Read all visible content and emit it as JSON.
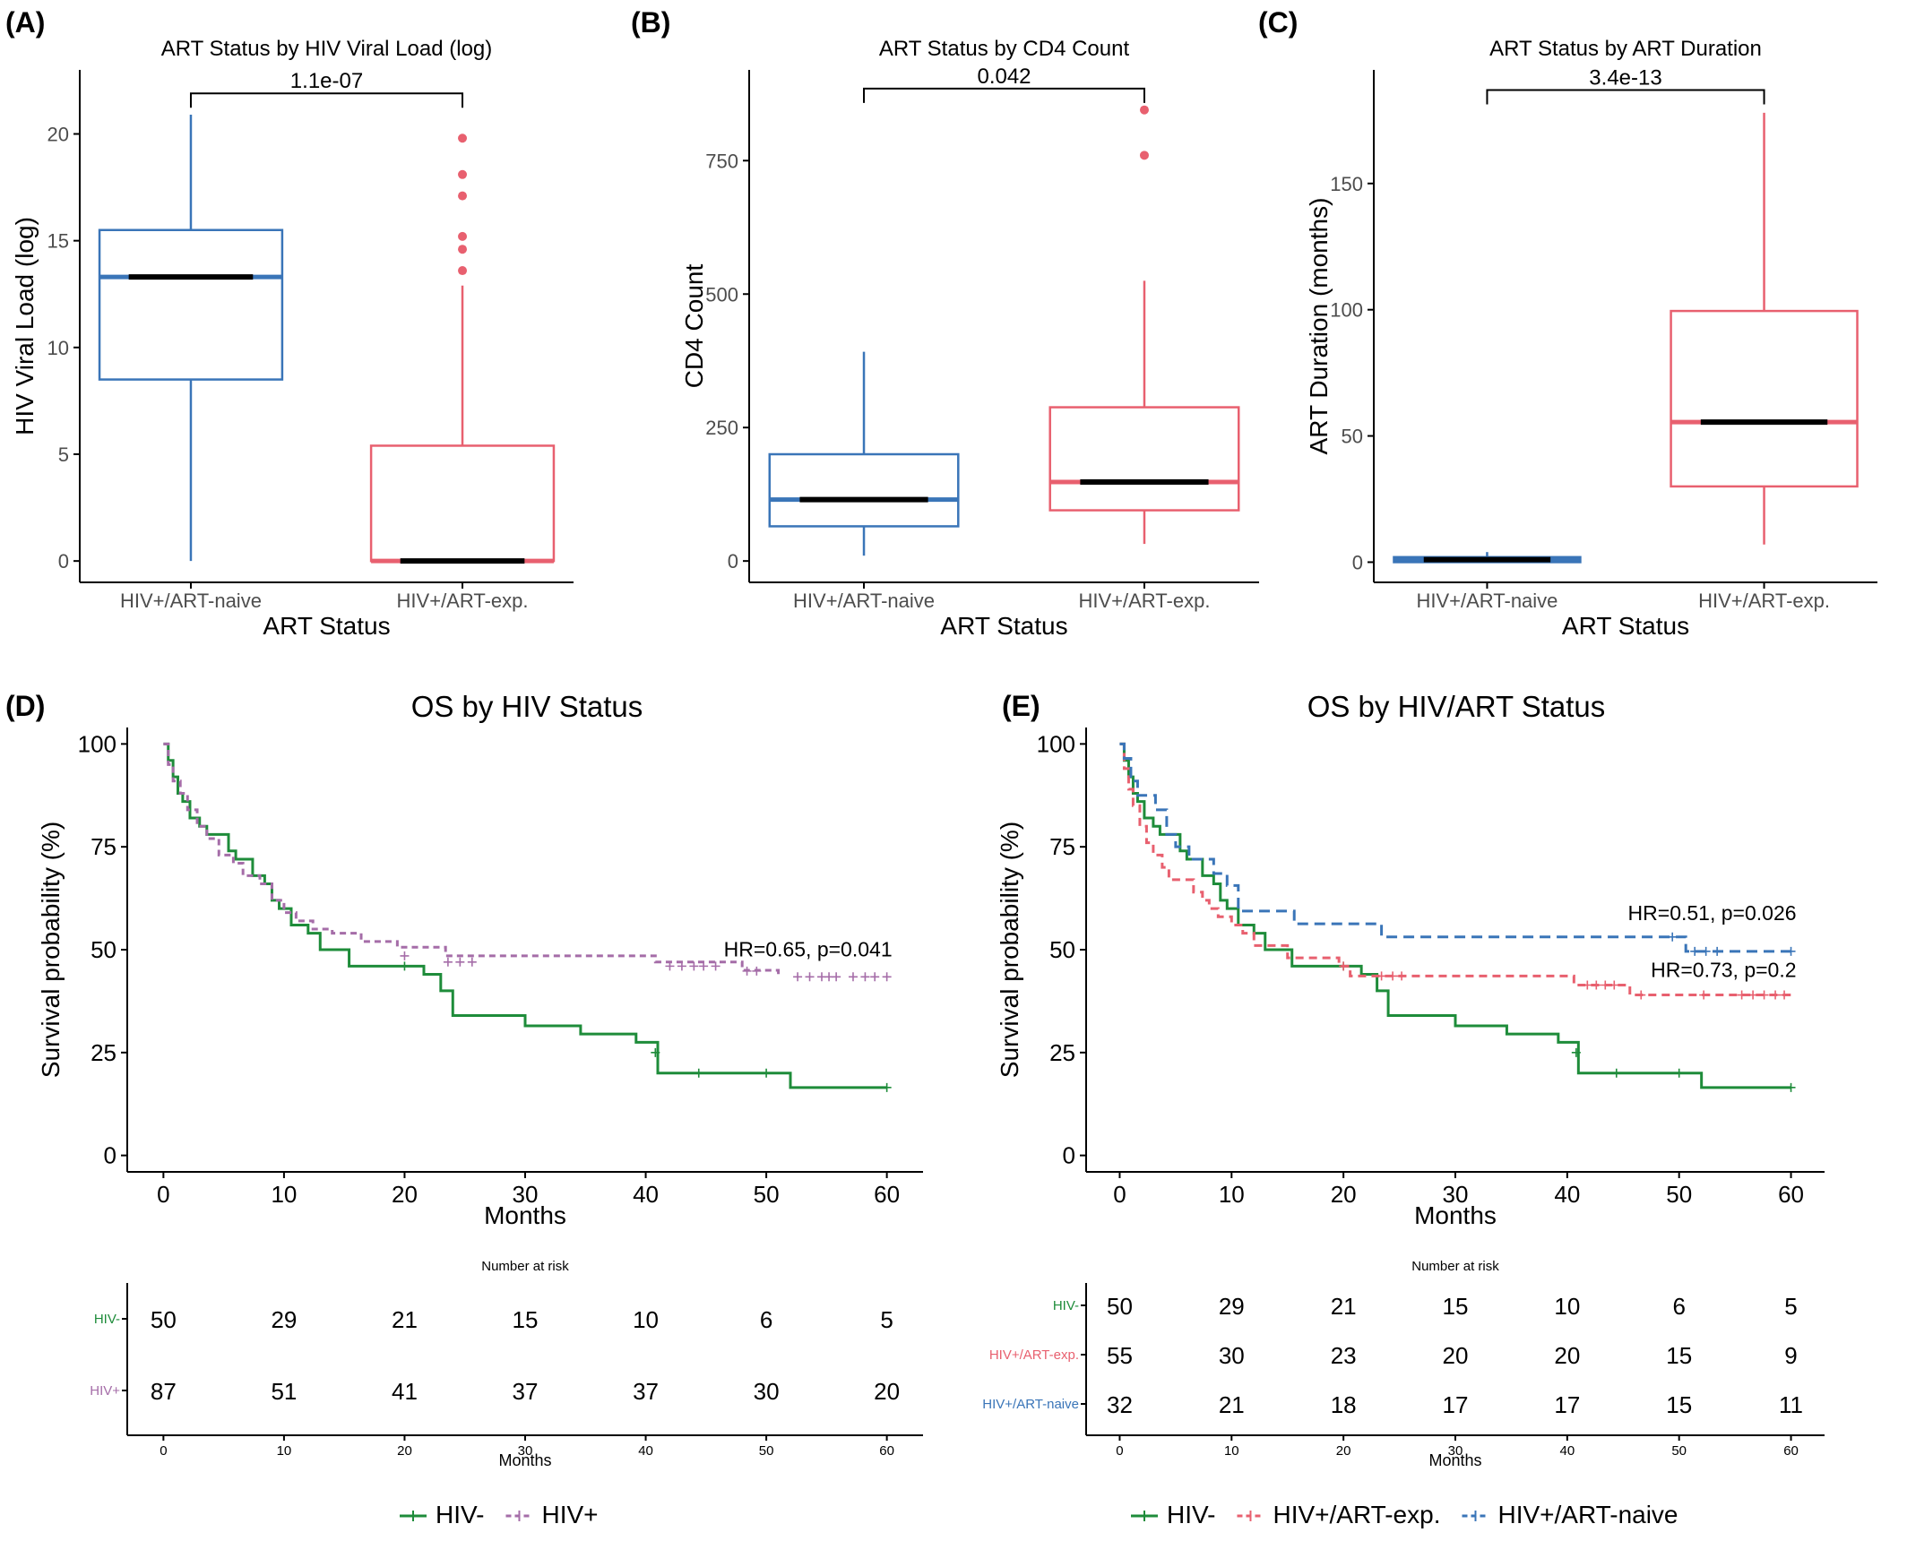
{
  "colors": {
    "naive": "#3A75B8",
    "exp": "#E8606F",
    "hivneg": "#1E8C3A",
    "hivpos": "#A56DA8",
    "axis": "#000000",
    "tick_text": "#4D4D4D"
  },
  "chart_data": [
    {
      "panel": "(A)",
      "type": "box",
      "title": "ART Status by HIV Viral Load (log)",
      "xlabel": "ART Status",
      "ylabel": "HIV Viral Load (log)",
      "categories": [
        "HIV+/ART-naive",
        "HIV+/ART-exp."
      ],
      "ylim": [
        -1,
        23
      ],
      "yticks": [
        0,
        5,
        10,
        15,
        20
      ],
      "ytick_labels": [
        "0",
        "5",
        "10",
        "15",
        "20"
      ],
      "boxes": [
        {
          "name": "HIV+/ART-naive",
          "color": "naive",
          "whisker_low": 0,
          "q1": 8.5,
          "median": 13.3,
          "q3": 15.5,
          "whisker_high": 20.9,
          "outliers": []
        },
        {
          "name": "HIV+/ART-exp.",
          "color": "exp",
          "whisker_low": 0,
          "q1": 0,
          "median": 0,
          "q3": 5.4,
          "whisker_high": 12.9,
          "outliers": [
            13.6,
            14.6,
            15.2,
            17.1,
            18.1,
            19.8
          ]
        }
      ],
      "comparison": {
        "label": "1.1e-07",
        "y": 21.9
      }
    },
    {
      "panel": "(B)",
      "type": "box",
      "title": "ART Status by CD4 Count",
      "xlabel": "ART Status",
      "ylabel": "CD4 Count",
      "categories": [
        "HIV+/ART-naive",
        "HIV+/ART-exp."
      ],
      "ylim": [
        -40,
        920
      ],
      "yticks": [
        0,
        250,
        500,
        750
      ],
      "ytick_labels": [
        "0",
        "250",
        "500",
        "750"
      ],
      "boxes": [
        {
          "name": "HIV+/ART-naive",
          "color": "naive",
          "whisker_low": 10,
          "q1": 65,
          "median": 115,
          "q3": 200,
          "whisker_high": 392,
          "outliers": []
        },
        {
          "name": "HIV+/ART-exp.",
          "color": "exp",
          "whisker_low": 32,
          "q1": 95,
          "median": 148,
          "q3": 288,
          "whisker_high": 525,
          "outliers": [
            760,
            845
          ]
        }
      ],
      "comparison": {
        "label": "0.042",
        "y": 885
      }
    },
    {
      "panel": "(C)",
      "type": "box",
      "title": "ART Status by ART Duration",
      "xlabel": "ART Status",
      "ylabel": "ART Duration (months)",
      "categories": [
        "HIV+/ART-naive",
        "HIV+/ART-exp."
      ],
      "ylim": [
        -8,
        195
      ],
      "yticks": [
        0,
        50,
        100,
        150
      ],
      "ytick_labels": [
        "0",
        "50",
        "100",
        "150"
      ],
      "boxes": [
        {
          "name": "HIV+/ART-naive",
          "color": "naive",
          "whisker_low": 0,
          "q1": 0,
          "median": 1,
          "q3": 2,
          "whisker_high": 4,
          "outliers": []
        },
        {
          "name": "HIV+/ART-exp.",
          "color": "exp",
          "whisker_low": 7,
          "q1": 30,
          "median": 55.5,
          "q3": 99.5,
          "whisker_high": 178,
          "outliers": []
        }
      ],
      "comparison": {
        "label": "3.4e-13",
        "y": 187
      }
    },
    {
      "panel": "(D)",
      "type": "line",
      "title": "OS by HIV Status",
      "xlabel": "Months",
      "ylabel": "Survival probability (%)",
      "xlim": [
        -3,
        63
      ],
      "ylim": [
        -4,
        104
      ],
      "xticks": [
        0,
        10,
        20,
        30,
        40,
        50,
        60
      ],
      "yticks": [
        0,
        25,
        50,
        75,
        100
      ],
      "series": [
        {
          "name": "HIV-",
          "color": "hivneg",
          "dash": "",
          "x": [
            0,
            0.4,
            0.8,
            1.2,
            1.6,
            2.2,
            3,
            3.6,
            4.2,
            5.4,
            6,
            7.4,
            8.4,
            9,
            9.6,
            10.6,
            12,
            13,
            14.8,
            15.4,
            20,
            21.6,
            23,
            24,
            27,
            30,
            34.6,
            39.2,
            41,
            52,
            60
          ],
          "y": [
            100,
            96,
            92,
            88,
            86,
            82,
            80,
            78,
            78,
            74,
            72,
            68,
            66,
            62,
            60,
            56,
            54,
            50,
            50,
            46,
            46,
            44,
            40,
            34,
            34,
            31.5,
            29.5,
            27.5,
            20,
            16.5,
            16.5
          ],
          "censor": [
            [
              20,
              46
            ],
            [
              40.8,
              25
            ],
            [
              44.4,
              20
            ],
            [
              50,
              20
            ],
            [
              60,
              16.5
            ]
          ]
        },
        {
          "name": "HIV+",
          "color": "hivpos",
          "dash": "7,5",
          "x": [
            0,
            0.4,
            0.8,
            1.4,
            2,
            2.8,
            3.6,
            4.6,
            5.8,
            6.6,
            8,
            9,
            10,
            11,
            12.4,
            14,
            16.4,
            19.4,
            23.4,
            40.8,
            48,
            51
          ],
          "y": [
            100,
            95,
            91,
            88,
            84,
            80,
            77,
            73,
            71,
            68,
            66,
            62,
            59,
            57,
            55,
            54,
            52,
            50.6,
            48.5,
            47,
            45,
            43.4
          ],
          "censor": [
            [
              20,
              48.5
            ],
            [
              23.6,
              47
            ],
            [
              24.6,
              47
            ],
            [
              25.6,
              47
            ],
            [
              42,
              46
            ],
            [
              43,
              46
            ],
            [
              44,
              46
            ],
            [
              44.8,
              46
            ],
            [
              45.8,
              46
            ],
            [
              48.4,
              44.8
            ],
            [
              49.2,
              44.8
            ],
            [
              52.6,
              43.4
            ],
            [
              53.6,
              43.4
            ],
            [
              54.6,
              43.4
            ],
            [
              55.2,
              43.4
            ],
            [
              55.8,
              43.4
            ],
            [
              57.2,
              43.4
            ],
            [
              58.2,
              43.4
            ],
            [
              59,
              43.4
            ],
            [
              60,
              43.4
            ]
          ]
        }
      ],
      "annotations": [
        {
          "text": "HR=0.65, p=0.041",
          "x": 60,
          "y": 48.4
        }
      ],
      "risk_table": {
        "title": "Number at risk",
        "xlabel": "Months",
        "rows": [
          {
            "label": "HIV-",
            "color": "hivneg",
            "values": [
              "50",
              "29",
              "21",
              "15",
              "10",
              "6",
              "5"
            ]
          },
          {
            "label": "HIV+",
            "color": "hivpos",
            "values": [
              "87",
              "51",
              "41",
              "37",
              "37",
              "30",
              "20"
            ]
          }
        ]
      },
      "legend": [
        "HIV-",
        "HIV+"
      ]
    },
    {
      "panel": "(E)",
      "type": "line",
      "title": "OS by HIV/ART Status",
      "xlabel": "Months",
      "ylabel": "Survival probability (%)",
      "xlim": [
        -3,
        63
      ],
      "ylim": [
        -4,
        104
      ],
      "xticks": [
        0,
        10,
        20,
        30,
        40,
        50,
        60
      ],
      "yticks": [
        0,
        25,
        50,
        75,
        100
      ],
      "series": [
        {
          "name": "HIV-",
          "color": "hivneg",
          "dash": "",
          "x": [
            0,
            0.4,
            0.8,
            1.2,
            1.6,
            2.2,
            3,
            3.6,
            4.2,
            5.4,
            6,
            7.4,
            8.4,
            9,
            9.6,
            10.6,
            12,
            13,
            14.8,
            15.4,
            20,
            21.6,
            23,
            24,
            27,
            30,
            34.6,
            39.2,
            41,
            52,
            60
          ],
          "y": [
            100,
            96,
            92,
            88,
            86,
            82,
            80,
            78,
            78,
            74,
            72,
            68,
            66,
            62,
            60,
            56,
            54,
            50,
            50,
            46,
            46,
            44,
            40,
            34,
            34,
            31.5,
            29.5,
            27.5,
            20,
            16.5,
            16.5
          ],
          "censor": [
            [
              20,
              46
            ],
            [
              40.8,
              25
            ],
            [
              44.4,
              20
            ],
            [
              50,
              20
            ],
            [
              60,
              16.5
            ]
          ]
        },
        {
          "name": "HIV+/ART-exp.",
          "color": "exp",
          "dash": "9,6",
          "x": [
            0,
            0.4,
            0.8,
            1.2,
            1.8,
            2.4,
            3,
            3.8,
            4.4,
            6.6,
            7.4,
            8,
            8.8,
            10,
            11,
            12,
            15,
            19.6,
            20.6,
            40.6,
            45.6,
            60
          ],
          "y": [
            100,
            94,
            89,
            85,
            80,
            76,
            73,
            70,
            67,
            64,
            62,
            60,
            58,
            56,
            54,
            51,
            48,
            46,
            43.6,
            41.4,
            39,
            39
          ],
          "censor": [
            [
              20,
              46
            ],
            [
              23.4,
              43.6
            ],
            [
              24.4,
              43.6
            ],
            [
              25.2,
              43.6
            ],
            [
              41.8,
              41.4
            ],
            [
              42.6,
              41.4
            ],
            [
              43.4,
              41.4
            ],
            [
              44.2,
              41.4
            ],
            [
              46.6,
              39
            ],
            [
              52.2,
              39
            ],
            [
              55.6,
              39
            ],
            [
              56.6,
              39
            ],
            [
              57.6,
              39
            ],
            [
              58.6,
              39
            ],
            [
              59.4,
              39
            ]
          ]
        },
        {
          "name": "HIV+/ART-naive",
          "color": "naive",
          "dash": "12,7",
          "x": [
            0,
            0.4,
            1,
            1.6,
            3.2,
            4.2,
            5,
            6.2,
            8.4,
            9.6,
            10.6,
            15.6,
            23.4,
            50.6,
            60
          ],
          "y": [
            100,
            96.5,
            91,
            87.5,
            84,
            78,
            75,
            72,
            68.5,
            65.6,
            59.4,
            56.3,
            53.1,
            49.6,
            49.6
          ],
          "censor": [
            [
              49.4,
              53.1
            ],
            [
              51.4,
              49.6
            ],
            [
              52.4,
              49.6
            ],
            [
              53.4,
              49.6
            ],
            [
              60,
              49.6
            ]
          ]
        }
      ],
      "annotations": [
        {
          "text": "HR=0.51, p=0.026",
          "x": 60,
          "y": 57.2
        },
        {
          "text": "HR=0.73, p=0.2",
          "x": 60,
          "y": 43.4
        }
      ],
      "risk_table": {
        "title": "Number at risk",
        "xlabel": "Months",
        "rows": [
          {
            "label": "HIV-",
            "color": "hivneg",
            "values": [
              "50",
              "29",
              "21",
              "15",
              "10",
              "6",
              "5"
            ]
          },
          {
            "label": "HIV+/ART-exp.",
            "color": "exp",
            "values": [
              "55",
              "30",
              "23",
              "20",
              "20",
              "15",
              "9"
            ]
          },
          {
            "label": "HIV+/ART-naive",
            "color": "naive",
            "values": [
              "32",
              "21",
              "18",
              "17",
              "17",
              "15",
              "11"
            ]
          }
        ]
      },
      "legend": [
        "HIV-",
        "HIV+/ART-exp.",
        "HIV+/ART-naive"
      ]
    }
  ]
}
